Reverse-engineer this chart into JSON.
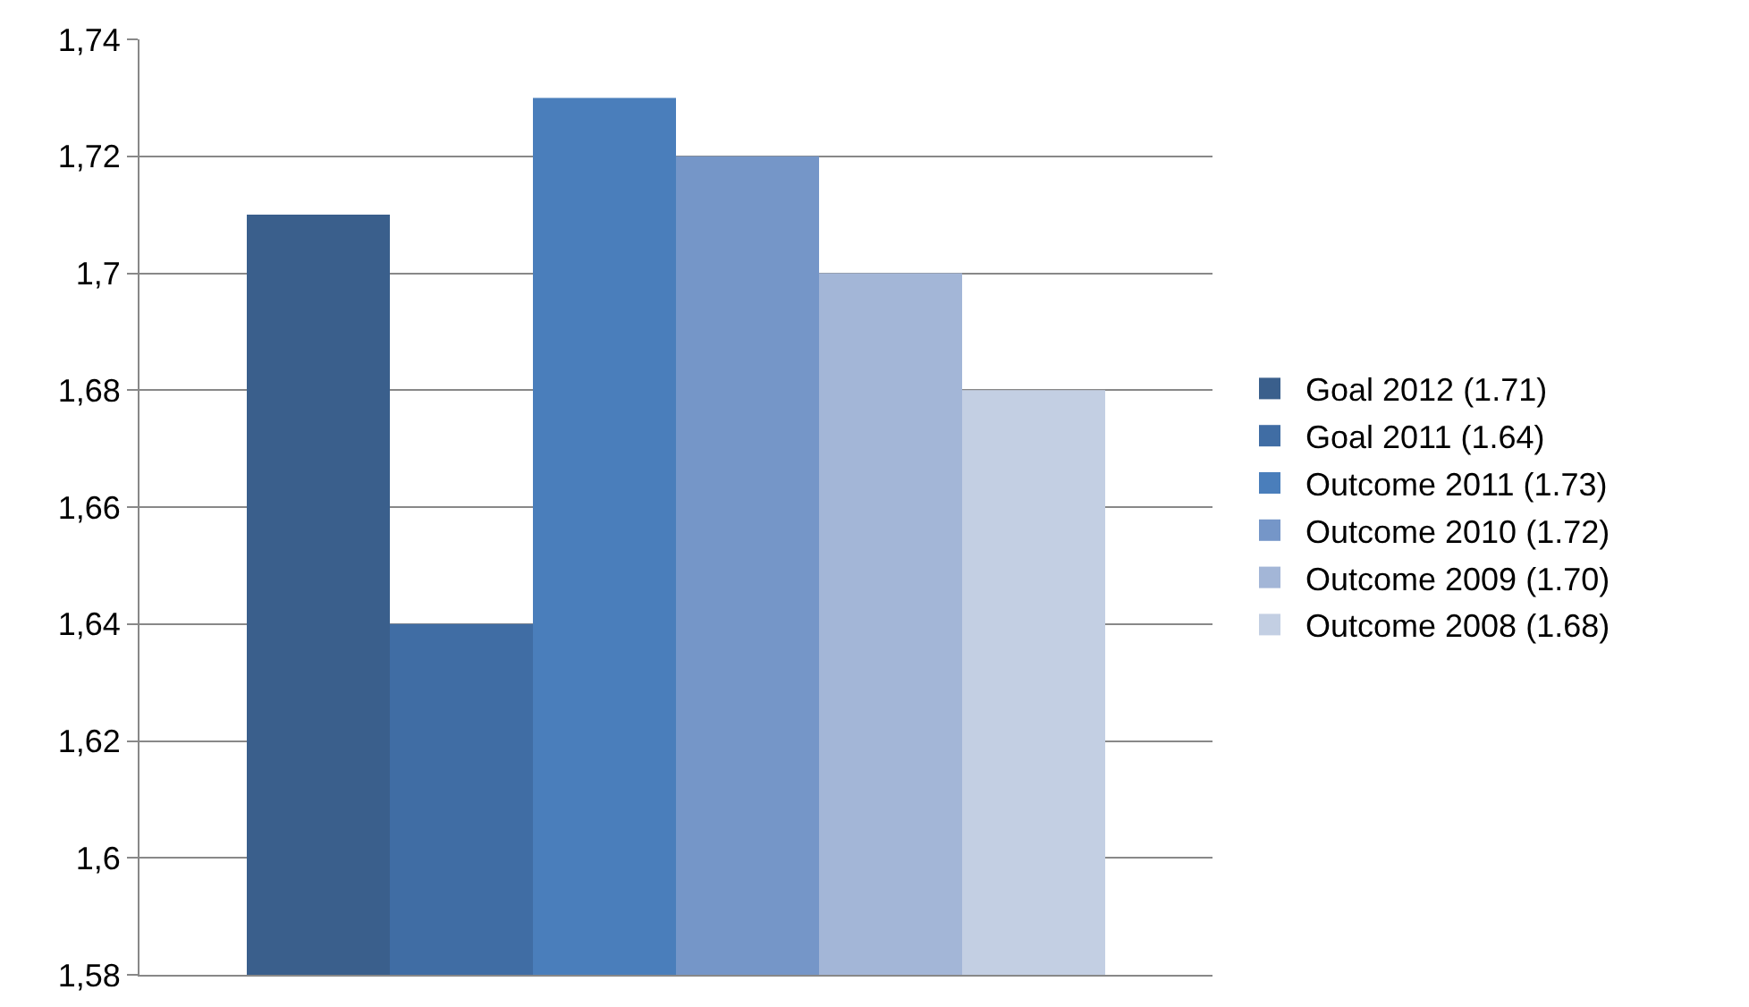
{
  "chart_data": {
    "type": "bar",
    "categories": [
      null
    ],
    "series": [
      {
        "name": "Goal 2012 (1.71)",
        "color": "#3a5f8c",
        "values": [
          1.71
        ]
      },
      {
        "name": "Goal 2011 (1.64)",
        "color": "#406da4",
        "values": [
          1.64
        ]
      },
      {
        "name": "Outcome 2011 (1.73)",
        "color": "#4a7ebb",
        "values": [
          1.73
        ]
      },
      {
        "name": "Outcome 2010 (1.72)",
        "color": "#7596c8",
        "values": [
          1.72
        ]
      },
      {
        "name": "Outcome 2009 (1.70)",
        "color": "#a3b6d7",
        "values": [
          1.7
        ]
      },
      {
        "name": "Outcome 2008 (1.68)",
        "color": "#c3cfe3",
        "values": [
          1.68
        ]
      }
    ],
    "ylim": [
      1.58,
      1.74
    ],
    "yticks": [
      {
        "value": 1.58,
        "label": "1,58"
      },
      {
        "value": 1.6,
        "label": "1,6"
      },
      {
        "value": 1.62,
        "label": "1,62"
      },
      {
        "value": 1.64,
        "label": "1,64"
      },
      {
        "value": 1.66,
        "label": "1,66"
      },
      {
        "value": 1.68,
        "label": "1,68"
      },
      {
        "value": 1.7,
        "label": "1,7"
      },
      {
        "value": 1.72,
        "label": "1,72"
      },
      {
        "value": 1.74,
        "label": "1,74"
      }
    ],
    "grid": "y",
    "legend": "right"
  }
}
